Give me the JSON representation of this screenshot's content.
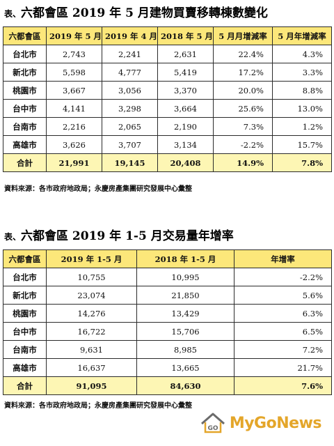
{
  "section1": {
    "prefix": "表、",
    "title": "六都會區 2019 年 5 月建物買賣移轉棟數變化",
    "headers": [
      "六都會區",
      "2019 年 5 月",
      "2019 年 4 月",
      "2018 年 5 月",
      "5 月月增減率",
      "5 月年增減率"
    ],
    "rows": [
      [
        "台北市",
        "2,743",
        "2,241",
        "2,631",
        "22.4%",
        "4.3%"
      ],
      [
        "新北市",
        "5,598",
        "4,777",
        "5,419",
        "17.2%",
        "3.3%"
      ],
      [
        "桃園市",
        "3,667",
        "3,056",
        "3,370",
        "20.0%",
        "8.8%"
      ],
      [
        "台中市",
        "4,141",
        "3,298",
        "3,664",
        "25.6%",
        "13.0%"
      ],
      [
        "台南市",
        "2,216",
        "2,065",
        "2,190",
        "7.3%",
        "1.2%"
      ],
      [
        "高雄市",
        "3,626",
        "3,707",
        "3,134",
        "-2.2%",
        "15.7%"
      ]
    ],
    "total": [
      "合計",
      "21,991",
      "19,145",
      "20,408",
      "14.9%",
      "7.8%"
    ],
    "source": "資料來源：各市政府地政局；永慶房產集團研究發展中心彙整"
  },
  "section2": {
    "prefix": "表、",
    "title": "六都會區 2019 年 1-5 月交易量年增率",
    "headers": [
      "六都會區",
      "2019 年 1-5 月",
      "2018 年 1-5 月",
      "年增率"
    ],
    "rows": [
      [
        "台北市",
        "10,755",
        "10,995",
        "-2.2%"
      ],
      [
        "新北市",
        "23,074",
        "21,850",
        "5.6%"
      ],
      [
        "桃園市",
        "14,276",
        "13,429",
        "6.3%"
      ],
      [
        "台中市",
        "16,722",
        "15,706",
        "6.5%"
      ],
      [
        "台南市",
        "9,631",
        "8,985",
        "7.2%"
      ],
      [
        "高雄市",
        "16,637",
        "13,665",
        "21.7%"
      ]
    ],
    "total": [
      "合計",
      "91,095",
      "84,630",
      "7.6%"
    ],
    "source": "資料來源：各市政府地政局；永慶房產集團研究發展中心彙整"
  },
  "logo": {
    "text": "MyGoNews",
    "mark_label": "GO",
    "colors": {
      "brand": "#e4a62a",
      "mark_dark": "#6b6b6b",
      "header_fill": "#fce77a",
      "total_fill": "#fdf6b4"
    }
  }
}
